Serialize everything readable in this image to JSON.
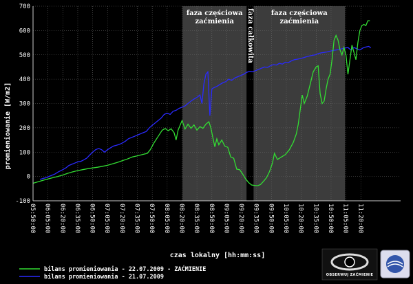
{
  "chart_data": {
    "type": "line",
    "ylabel": "promieniowanie [W/m2]",
    "xlabel": "czas lokalny [hh:mm:ss]",
    "ylim": [
      -100,
      700
    ],
    "yticks": [
      -100,
      0,
      100,
      200,
      300,
      400,
      500,
      600,
      700
    ],
    "x_start_min": 290,
    "x_end_min": 660,
    "xticks": [
      {
        "min": 290,
        "label": "05:50:00"
      },
      {
        "min": 305,
        "label": "06:05:00"
      },
      {
        "min": 320,
        "label": "06:20:00"
      },
      {
        "min": 335,
        "label": "06:35:00"
      },
      {
        "min": 350,
        "label": "06:50:00"
      },
      {
        "min": 365,
        "label": "07:05:00"
      },
      {
        "min": 380,
        "label": "07:20:00"
      },
      {
        "min": 395,
        "label": "07:35:00"
      },
      {
        "min": 410,
        "label": "07:50:00"
      },
      {
        "min": 425,
        "label": "08:05:00"
      },
      {
        "min": 440,
        "label": "08:20:00"
      },
      {
        "min": 455,
        "label": "08:35:00"
      },
      {
        "min": 470,
        "label": "08:50:00"
      },
      {
        "min": 485,
        "label": "09:05:00"
      },
      {
        "min": 500,
        "label": "09:20:00"
      },
      {
        "min": 515,
        "label": "09:35:00"
      },
      {
        "min": 530,
        "label": "09:50:00"
      },
      {
        "min": 545,
        "label": "10:05:00"
      },
      {
        "min": 560,
        "label": "10:20:00"
      },
      {
        "min": 575,
        "label": "10:35:00"
      },
      {
        "min": 590,
        "label": "10:50:00"
      },
      {
        "min": 605,
        "label": "11:05:00"
      },
      {
        "min": 620,
        "label": "11:20:00"
      }
    ],
    "regions": [
      {
        "from": 440.5,
        "to": 505,
        "kind": "partial",
        "label_lines": [
          "faza częściowa",
          "zaćmienia"
        ]
      },
      {
        "from": 505,
        "to": 512,
        "kind": "total",
        "label": "faza całkowita"
      },
      {
        "from": 512,
        "to": 604,
        "kind": "partial",
        "label_lines": [
          "faza częściowa",
          "zaćmienia"
        ]
      }
    ],
    "series": [
      {
        "name": "bilans promieniowania - 22.07.2009 - ZAĆMIENIE",
        "color": "#33dd33",
        "points": [
          [
            290,
            -28
          ],
          [
            295,
            -22
          ],
          [
            300,
            -16
          ],
          [
            305,
            -10
          ],
          [
            310,
            -5
          ],
          [
            315,
            0
          ],
          [
            320,
            6
          ],
          [
            325,
            13
          ],
          [
            330,
            19
          ],
          [
            335,
            24
          ],
          [
            340,
            28
          ],
          [
            345,
            32
          ],
          [
            350,
            35
          ],
          [
            355,
            38
          ],
          [
            360,
            42
          ],
          [
            365,
            46
          ],
          [
            370,
            52
          ],
          [
            375,
            58
          ],
          [
            380,
            65
          ],
          [
            385,
            72
          ],
          [
            390,
            80
          ],
          [
            395,
            85
          ],
          [
            400,
            90
          ],
          [
            405,
            95
          ],
          [
            408,
            110
          ],
          [
            412,
            140
          ],
          [
            416,
            165
          ],
          [
            420,
            190
          ],
          [
            423,
            197
          ],
          [
            426,
            188
          ],
          [
            429,
            196
          ],
          [
            432,
            180
          ],
          [
            434,
            150
          ],
          [
            436,
            190
          ],
          [
            438,
            210
          ],
          [
            440,
            230
          ],
          [
            443,
            195
          ],
          [
            446,
            215
          ],
          [
            449,
            198
          ],
          [
            452,
            212
          ],
          [
            455,
            190
          ],
          [
            458,
            205
          ],
          [
            461,
            198
          ],
          [
            464,
            215
          ],
          [
            467,
            225
          ],
          [
            469,
            200
          ],
          [
            471,
            160
          ],
          [
            473,
            122
          ],
          [
            475,
            155
          ],
          [
            477,
            130
          ],
          [
            480,
            150
          ],
          [
            483,
            125
          ],
          [
            486,
            120
          ],
          [
            489,
            80
          ],
          [
            492,
            75
          ],
          [
            495,
            30
          ],
          [
            498,
            28
          ],
          [
            501,
            10
          ],
          [
            504,
            -10
          ],
          [
            507,
            -25
          ],
          [
            510,
            -35
          ],
          [
            513,
            -37
          ],
          [
            516,
            -38
          ],
          [
            519,
            -33
          ],
          [
            522,
            -20
          ],
          [
            525,
            -5
          ],
          [
            528,
            20
          ],
          [
            531,
            55
          ],
          [
            533,
            95
          ],
          [
            536,
            70
          ],
          [
            540,
            80
          ],
          [
            544,
            90
          ],
          [
            548,
            110
          ],
          [
            552,
            140
          ],
          [
            555,
            175
          ],
          [
            557,
            215
          ],
          [
            559,
            275
          ],
          [
            561,
            335
          ],
          [
            563,
            300
          ],
          [
            566,
            330
          ],
          [
            569,
            380
          ],
          [
            572,
            430
          ],
          [
            575,
            450
          ],
          [
            577,
            455
          ],
          [
            579,
            340
          ],
          [
            581,
            300
          ],
          [
            583,
            310
          ],
          [
            585,
            360
          ],
          [
            587,
            400
          ],
          [
            589,
            420
          ],
          [
            591,
            480
          ],
          [
            593,
            560
          ],
          [
            595,
            580
          ],
          [
            597,
            560
          ],
          [
            599,
            520
          ],
          [
            601,
            500
          ],
          [
            603,
            530
          ],
          [
            605,
            500
          ],
          [
            607,
            420
          ],
          [
            609,
            480
          ],
          [
            611,
            540
          ],
          [
            613,
            510
          ],
          [
            615,
            480
          ],
          [
            617,
            550
          ],
          [
            619,
            600
          ],
          [
            621,
            620
          ],
          [
            623,
            625
          ],
          [
            625,
            620
          ],
          [
            627,
            640
          ],
          [
            629,
            640
          ]
        ]
      },
      {
        "name": "bilans promieniowania - 21.07.2009",
        "color": "#2a2aff",
        "points": [
          [
            297,
            -12
          ],
          [
            300,
            -8
          ],
          [
            303,
            -5
          ],
          [
            306,
            0
          ],
          [
            309,
            5
          ],
          [
            312,
            10
          ],
          [
            315,
            18
          ],
          [
            318,
            24
          ],
          [
            320,
            28
          ],
          [
            323,
            35
          ],
          [
            326,
            45
          ],
          [
            329,
            50
          ],
          [
            332,
            55
          ],
          [
            335,
            60
          ],
          [
            338,
            62
          ],
          [
            341,
            68
          ],
          [
            344,
            75
          ],
          [
            347,
            88
          ],
          [
            350,
            100
          ],
          [
            353,
            110
          ],
          [
            356,
            115
          ],
          [
            359,
            110
          ],
          [
            362,
            100
          ],
          [
            365,
            110
          ],
          [
            368,
            118
          ],
          [
            371,
            125
          ],
          [
            374,
            128
          ],
          [
            377,
            132
          ],
          [
            380,
            138
          ],
          [
            383,
            145
          ],
          [
            386,
            155
          ],
          [
            389,
            160
          ],
          [
            392,
            165
          ],
          [
            395,
            170
          ],
          [
            398,
            175
          ],
          [
            401,
            180
          ],
          [
            404,
            185
          ],
          [
            407,
            200
          ],
          [
            410,
            210
          ],
          [
            413,
            220
          ],
          [
            416,
            230
          ],
          [
            419,
            240
          ],
          [
            422,
            255
          ],
          [
            425,
            260
          ],
          [
            428,
            255
          ],
          [
            431,
            268
          ],
          [
            434,
            272
          ],
          [
            437,
            280
          ],
          [
            440,
            285
          ],
          [
            443,
            290
          ],
          [
            446,
            300
          ],
          [
            449,
            310
          ],
          [
            452,
            318
          ],
          [
            455,
            325
          ],
          [
            458,
            335
          ],
          [
            460,
            300
          ],
          [
            462,
            380
          ],
          [
            464,
            420
          ],
          [
            466,
            430
          ],
          [
            468,
            250
          ],
          [
            470,
            360
          ],
          [
            472,
            365
          ],
          [
            475,
            370
          ],
          [
            478,
            378
          ],
          [
            481,
            385
          ],
          [
            484,
            390
          ],
          [
            487,
            400
          ],
          [
            490,
            395
          ],
          [
            493,
            405
          ],
          [
            496,
            410
          ],
          [
            499,
            415
          ],
          [
            502,
            420
          ],
          [
            505,
            428
          ],
          [
            508,
            432
          ],
          [
            511,
            430
          ],
          [
            514,
            435
          ],
          [
            517,
            440
          ],
          [
            520,
            445
          ],
          [
            523,
            450
          ],
          [
            526,
            448
          ],
          [
            529,
            455
          ],
          [
            532,
            460
          ],
          [
            535,
            458
          ],
          [
            538,
            465
          ],
          [
            541,
            462
          ],
          [
            544,
            470
          ],
          [
            547,
            468
          ],
          [
            550,
            475
          ],
          [
            553,
            480
          ],
          [
            556,
            482
          ],
          [
            559,
            485
          ],
          [
            562,
            488
          ],
          [
            565,
            492
          ],
          [
            568,
            495
          ],
          [
            571,
            498
          ],
          [
            574,
            500
          ],
          [
            577,
            505
          ],
          [
            580,
            508
          ],
          [
            583,
            510
          ],
          [
            586,
            512
          ],
          [
            589,
            515
          ],
          [
            592,
            518
          ],
          [
            595,
            520
          ],
          [
            598,
            522
          ],
          [
            601,
            525
          ],
          [
            604,
            528
          ],
          [
            607,
            530
          ],
          [
            610,
            520
          ],
          [
            613,
            530
          ],
          [
            616,
            525
          ],
          [
            619,
            520
          ],
          [
            622,
            528
          ],
          [
            625,
            532
          ],
          [
            628,
            535
          ],
          [
            630,
            528
          ]
        ]
      }
    ]
  },
  "logo": {
    "text": "OBSERWUJ ZAĆMIENIE"
  }
}
